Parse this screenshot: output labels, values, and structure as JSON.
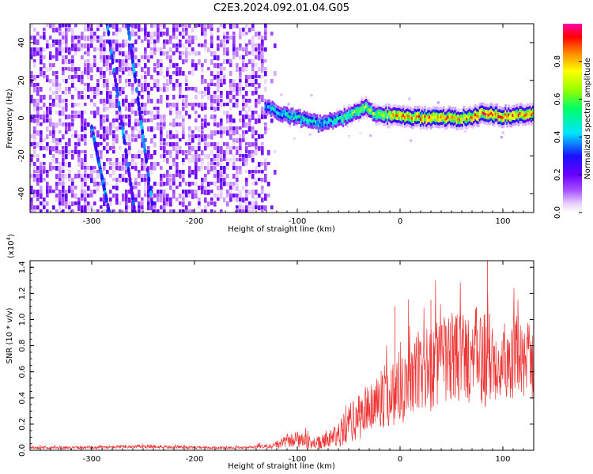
{
  "title": "C2E3.2024.092.01.04.G05",
  "chart_data": [
    {
      "type": "heatmap",
      "xlabel": "Height of straight line (km)",
      "ylabel": "Frequency (Hz)",
      "xlim": [
        -360,
        130
      ],
      "ylim": [
        -50,
        50
      ],
      "xticks": [
        -300,
        -200,
        -100,
        0,
        100
      ],
      "yticks": [
        -40,
        -20,
        0,
        20,
        40
      ],
      "colorbar": {
        "label": "Normalized spectral amplitude",
        "range": [
          0.0,
          1.0
        ],
        "ticks": [
          "0.0",
          "0.2",
          "0.4",
          "0.6",
          "0.8"
        ],
        "colors": [
          "#ffffff",
          "#e6ccff",
          "#a64dff",
          "#6a00ff",
          "#1a10ff",
          "#00e5ff",
          "#00ff66",
          "#99ff00",
          "#ffff00",
          "#ff8000",
          "#ff0000",
          "#ff00aa"
        ]
      },
      "noise_region": {
        "x": [
          -360,
          -132
        ],
        "amplitude": 0.25
      },
      "streaks": [
        {
          "x": [
            -285,
            -258
          ],
          "y": [
            50,
            -50
          ]
        },
        {
          "x": [
            -265,
            -240
          ],
          "y": [
            50,
            -50
          ]
        },
        {
          "x": [
            -300,
            -283
          ],
          "y": [
            -5,
            -50
          ]
        }
      ],
      "ridge": {
        "x": [
          -132,
          -120,
          -100,
          -80,
          -60,
          -45,
          -35,
          -25,
          -10,
          0,
          20,
          40,
          60,
          80,
          100,
          130
        ],
        "y": [
          6,
          3,
          0,
          -3,
          -1,
          3,
          6,
          2,
          1,
          1,
          0,
          0,
          0,
          2,
          1,
          2
        ],
        "amplitude": [
          0.5,
          0.55,
          0.6,
          0.55,
          0.6,
          0.7,
          0.75,
          0.7,
          0.85,
          0.9,
          0.95,
          0.95,
          0.9,
          0.98,
          0.95,
          0.9
        ]
      }
    },
    {
      "type": "line",
      "xlabel": "Height of straight line (km)",
      "ylabel": "SNR (10 * v/v)",
      "multiplier": "(x10",
      "multiplier_exp": "4",
      "multiplier_close": ")",
      "xlim": [
        -360,
        130
      ],
      "ylim": [
        0.0,
        1.45
      ],
      "xticks": [
        -300,
        -200,
        -100,
        0,
        100
      ],
      "yticks": [
        "0.0",
        "0.2",
        "0.4",
        "0.6",
        "0.8",
        "1.0",
        "1.2",
        "1.4"
      ],
      "series": [
        {
          "name": "SNR",
          "color": "#ee3333",
          "x": [
            -360,
            -300,
            -250,
            -200,
            -150,
            -125,
            -110,
            -100,
            -90,
            -80,
            -70,
            -60,
            -50,
            -40,
            -30,
            -20,
            -10,
            0,
            20,
            40,
            60,
            80,
            100,
            130
          ],
          "mean": [
            0.02,
            0.02,
            0.03,
            0.02,
            0.02,
            0.03,
            0.07,
            0.08,
            0.06,
            0.05,
            0.08,
            0.12,
            0.2,
            0.25,
            0.33,
            0.38,
            0.42,
            0.5,
            0.58,
            0.68,
            0.72,
            0.7,
            0.7,
            0.68
          ],
          "spread": [
            0.01,
            0.01,
            0.015,
            0.01,
            0.01,
            0.02,
            0.05,
            0.06,
            0.05,
            0.05,
            0.06,
            0.1,
            0.14,
            0.18,
            0.2,
            0.22,
            0.25,
            0.3,
            0.32,
            0.35,
            0.35,
            0.4,
            0.3,
            0.3
          ],
          "peaks": [
            {
              "x": 85,
              "y": 1.45
            },
            {
              "x": -5,
              "y": 1.1
            },
            {
              "x": 30,
              "y": 1.15
            }
          ]
        }
      ]
    }
  ]
}
